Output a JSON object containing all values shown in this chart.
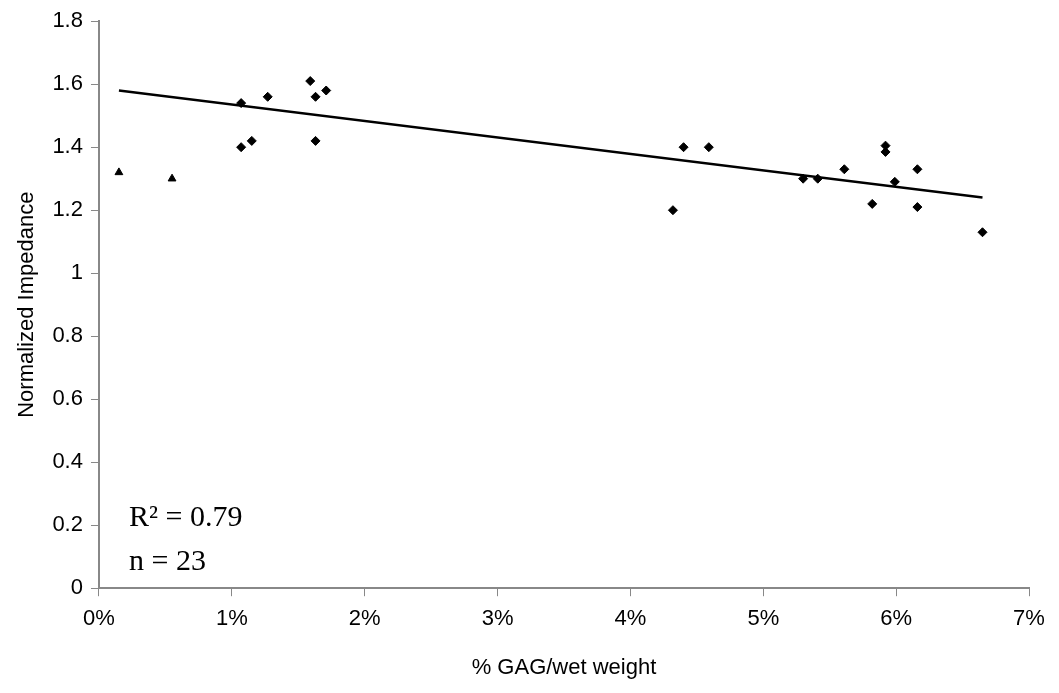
{
  "chart_data": {
    "type": "scatter",
    "xlabel": "% GAG/wet weight",
    "ylabel": "Normalized Impedance",
    "xlim": [
      0,
      7
    ],
    "xticks": [
      {
        "value": 0,
        "label": "0%"
      },
      {
        "value": 1,
        "label": "1%"
      },
      {
        "value": 2,
        "label": "2%"
      },
      {
        "value": 3,
        "label": "3%"
      },
      {
        "value": 4,
        "label": "4%"
      },
      {
        "value": 5,
        "label": "5%"
      },
      {
        "value": 6,
        "label": "6%"
      },
      {
        "value": 7,
        "label": "7%"
      }
    ],
    "ylim": [
      0,
      1.8
    ],
    "yticks": [
      0,
      0.2,
      0.4,
      0.6,
      0.8,
      1,
      1.2,
      1.4,
      1.6,
      1.8
    ],
    "grid": false,
    "legend": false,
    "marker": "diamond",
    "series": [
      {
        "color": "#000000",
        "marker": "triangle",
        "x": [
          0.15,
          0.55
        ],
        "values": [
          1.32,
          1.3
        ]
      },
      {
        "color": "#000000",
        "x": [
          1.07,
          1.27,
          1.59,
          1.71,
          1.63,
          1.07,
          1.15,
          1.63,
          4.4,
          4.59,
          4.32,
          5.3,
          5.41,
          5.61,
          5.92,
          5.92,
          5.99,
          5.82,
          6.16,
          6.16,
          6.65
        ],
        "values": [
          1.54,
          1.56,
          1.61,
          1.58,
          1.56,
          1.4,
          1.42,
          1.42,
          1.4,
          1.4,
          1.2,
          1.3,
          1.3,
          1.33,
          1.405,
          1.385,
          1.29,
          1.22,
          1.33,
          1.21,
          1.13
        ]
      },
      {
        "type": "line",
        "color": "#000000",
        "marker": "none",
        "x": [
          0.15,
          6.65
        ],
        "values": [
          1.58,
          1.24
        ]
      }
    ],
    "annotations": [
      "R² = 0.79",
      "n = 23"
    ]
  }
}
